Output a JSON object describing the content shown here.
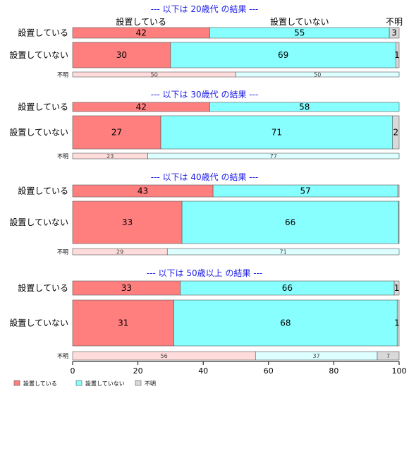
{
  "chart_data": {
    "type": "bar",
    "orientation": "horizontal-stacked",
    "xlim": [
      0,
      100
    ],
    "xticks": [
      0,
      20,
      40,
      60,
      80,
      100
    ],
    "legend": {
      "placement": "bottom-left",
      "items": [
        "設置している",
        "設置していない",
        "不明"
      ]
    },
    "colors": [
      "#ff7f7f",
      "#88ffff",
      "#d9d9d9"
    ],
    "small_colors": [
      "#ffdcdc",
      "#ddffff",
      "#d9d9d9"
    ],
    "header_labels": [
      "設置している",
      "設置していない",
      "不明"
    ],
    "panels": [
      {
        "caption": "--- 以下は 20歳代 の結果 ---",
        "rows": [
          {
            "label": "設置している",
            "values": [
              42,
              55,
              3
            ],
            "labels": [
              "42",
              "55",
              "3"
            ]
          },
          {
            "label": "設置していない",
            "values": [
              30,
              69,
              1
            ],
            "labels": [
              "30",
              "69",
              "1"
            ]
          },
          {
            "label": "不明",
            "values": [
              50,
              50,
              0
            ],
            "labels": [
              "50",
              "50",
              ""
            ]
          }
        ]
      },
      {
        "caption": "--- 以下は 30歳代 の結果 ---",
        "rows": [
          {
            "label": "設置している",
            "values": [
              42,
              58,
              0
            ],
            "labels": [
              "42",
              "58",
              ""
            ]
          },
          {
            "label": "設置していない",
            "values": [
              27,
              71,
              2
            ],
            "labels": [
              "27",
              "71",
              "2"
            ]
          },
          {
            "label": "不明",
            "values": [
              23,
              77,
              0
            ],
            "labels": [
              "23",
              "77",
              ""
            ]
          }
        ]
      },
      {
        "caption": "--- 以下は 40歳代 の結果 ---",
        "rows": [
          {
            "label": "設置している",
            "values": [
              43,
              56.6,
              0.4
            ],
            "labels": [
              "43",
              "57",
              ""
            ]
          },
          {
            "label": "設置していない",
            "values": [
              33.5,
              66.3,
              0.2
            ],
            "labels": [
              "33",
              "66",
              ""
            ]
          },
          {
            "label": "不明",
            "values": [
              29,
              71,
              0
            ],
            "labels": [
              "29",
              "71",
              ""
            ]
          }
        ]
      },
      {
        "caption": "--- 以下は 50歳以上 の結果 ---",
        "rows": [
          {
            "label": "設置している",
            "values": [
              33,
              65.5,
              1.5
            ],
            "labels": [
              "33",
              "66",
              "1"
            ]
          },
          {
            "label": "設置していない",
            "values": [
              31,
              68.4,
              0.6
            ],
            "labels": [
              "31",
              "68",
              "1"
            ]
          },
          {
            "label": "不明",
            "values": [
              56,
              37.3,
              6.7
            ],
            "labels": [
              "56",
              "37",
              "7"
            ]
          }
        ]
      }
    ]
  }
}
